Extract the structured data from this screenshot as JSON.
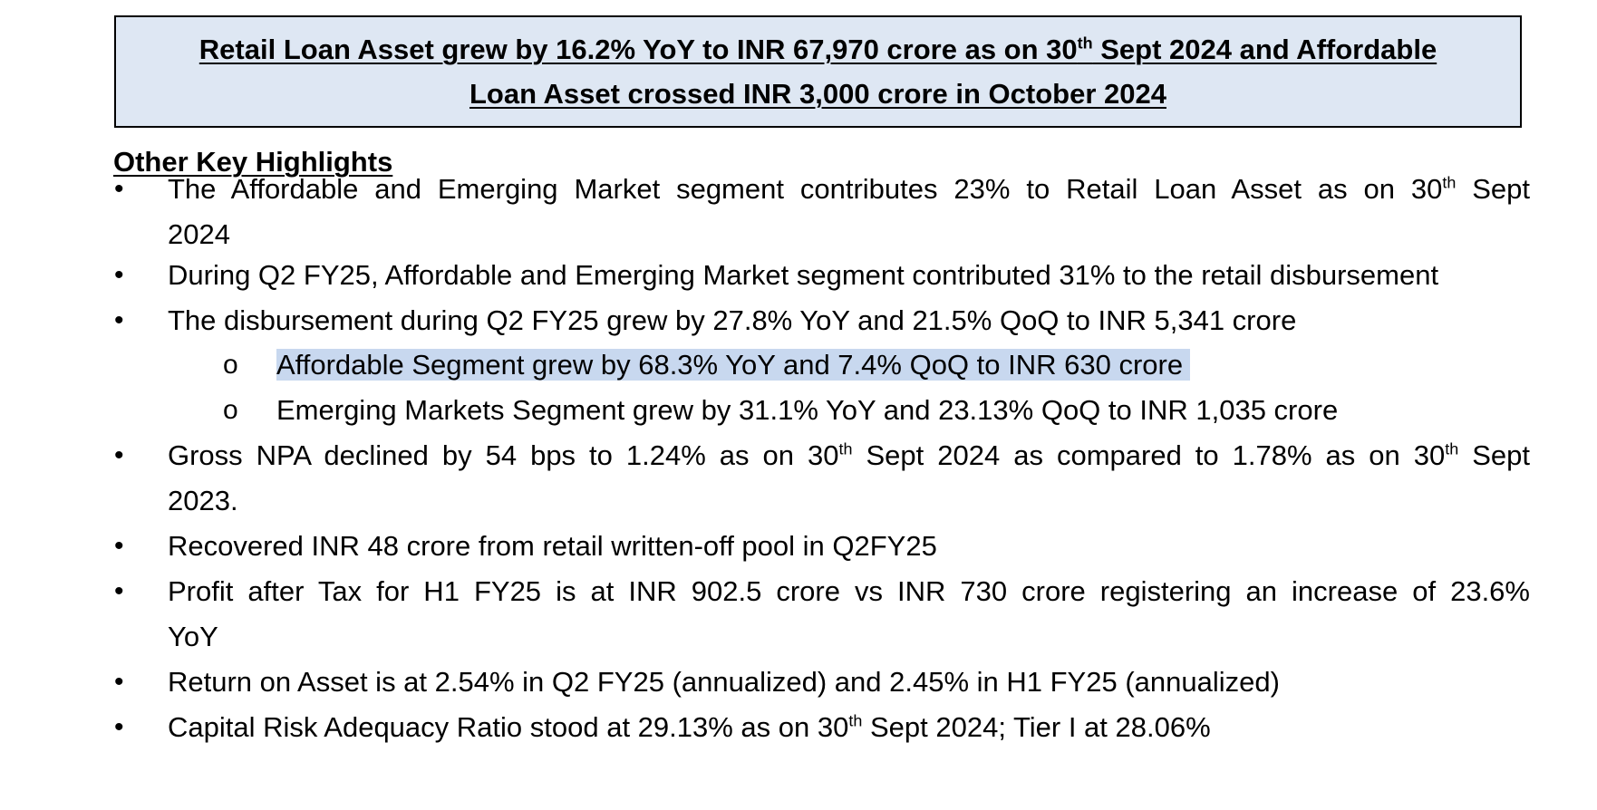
{
  "headline": {
    "line1_pre": "Retail Loan Asset grew by 16.2% YoY to INR 67,970 crore as on 30",
    "line1_sup": "th",
    "line1_post": " Sept 2024 and Affordable",
    "line2": "Loan Asset crossed INR 3,000 crore in October 2024"
  },
  "section_title": "Other Key Highlights",
  "bullet_glyph": "•",
  "sub_bullet_glyph": "o",
  "colors": {
    "headline_bg": "#dee7f3",
    "selection_highlight": "#c8d8ef"
  },
  "items": {
    "b1": {
      "pre": "The Affordable and Emerging Market segment contributes 23% to Retail Loan Asset as on 30",
      "sup": "th",
      "post": " Sept",
      "line2": "2024"
    },
    "b2": {
      "text": "During Q2 FY25, Affordable and Emerging Market segment contributed 31% to the retail disbursement"
    },
    "b3": {
      "text": "The disbursement during Q2 FY25 grew by 27.8% YoY and 21.5% QoQ to INR 5,341 crore"
    },
    "s1": {
      "text": "Affordable Segment grew by 68.3% YoY and 7.4% QoQ to INR 630 crore"
    },
    "s2": {
      "text": "Emerging Markets Segment grew by 31.1% YoY and 23.13% QoQ to INR 1,035 crore"
    },
    "b4": {
      "pre": "Gross NPA declined by 54 bps to 1.24% as on 30",
      "sup1": "th",
      "mid": " Sept 2024 as compared to 1.78% as on 30",
      "sup2": "th",
      "post": " Sept",
      "line2": "2023."
    },
    "b5": {
      "text": "Recovered INR 48 crore from retail written-off pool in Q2FY25"
    },
    "b6": {
      "line1": "Profit after Tax for H1 FY25 is at INR 902.5 crore vs INR  730 crore registering an increase of 23.6%",
      "line2": "YoY"
    },
    "b7": {
      "text": "Return on Asset is at 2.54% in Q2 FY25 (annualized) and 2.45% in H1 FY25 (annualized)"
    },
    "b8": {
      "pre": "Capital Risk Adequacy Ratio stood at 29.13% as on 30",
      "sup": "th",
      "post": " Sept 2024; Tier I at 28.06%"
    }
  }
}
